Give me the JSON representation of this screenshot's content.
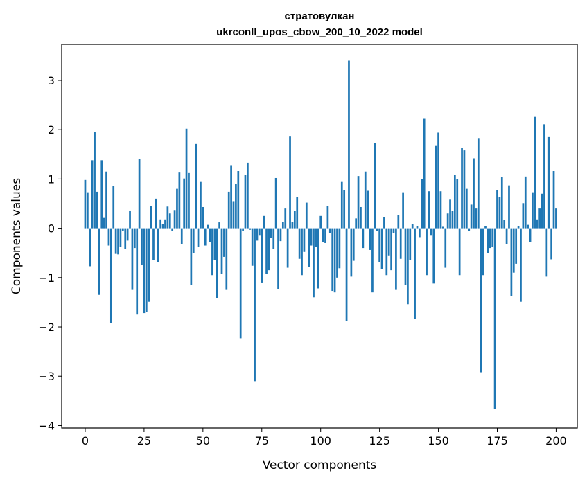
{
  "chart_data": {
    "type": "bar",
    "title": "стратовулкан",
    "subtitle": "ukrconll_upos_cbow_200_10_2022 model",
    "xlabel": "Vector components",
    "ylabel": "Components values",
    "xlim": [
      -10,
      209
    ],
    "ylim": [
      -4.05,
      3.73
    ],
    "xticks": [
      0,
      25,
      50,
      75,
      100,
      125,
      150,
      175,
      200
    ],
    "yticks": [
      -4,
      -3,
      -2,
      -1,
      0,
      1,
      2,
      3
    ],
    "grid": false,
    "bar_color": "#1f77b4",
    "values": [
      0.98,
      0.73,
      -0.77,
      1.38,
      1.96,
      0.74,
      -1.35,
      1.38,
      0.21,
      1.15,
      -0.35,
      -1.92,
      0.86,
      -0.52,
      -0.53,
      -0.38,
      -0.05,
      -0.42,
      -0.25,
      0.36,
      -1.25,
      -0.4,
      -1.75,
      1.4,
      -0.75,
      -1.72,
      -1.7,
      -1.49,
      0.45,
      -0.65,
      0.6,
      -0.68,
      0.18,
      0.08,
      0.18,
      0.44,
      0.3,
      -0.05,
      0.37,
      0.8,
      1.13,
      -0.32,
      1.01,
      2.02,
      1.12,
      -1.15,
      -0.5,
      1.71,
      -0.38,
      0.94,
      0.43,
      -0.35,
      0.07,
      -0.28,
      -0.95,
      -0.65,
      -1.42,
      0.12,
      -0.92,
      -0.58,
      -1.25,
      0.74,
      1.28,
      0.55,
      0.9,
      1.16,
      -2.23,
      -0.05,
      1.08,
      1.33,
      -0.03,
      -0.76,
      -3.1,
      -0.25,
      -0.15,
      -1.1,
      0.25,
      -0.92,
      -0.85,
      -0.2,
      -0.42,
      1.02,
      -1.23,
      -0.26,
      0.13,
      0.4,
      -0.8,
      1.86,
      0.13,
      0.35,
      0.63,
      -0.62,
      -0.95,
      -0.48,
      0.52,
      -0.78,
      -0.35,
      -1.4,
      -0.38,
      -1.22,
      0.25,
      -0.28,
      -0.3,
      0.45,
      -0.1,
      -1.27,
      -1.3,
      -1.0,
      -0.81,
      0.94,
      0.78,
      -1.88,
      3.4,
      -0.98,
      -0.66,
      0.2,
      1.06,
      0.43,
      -0.4,
      1.15,
      0.76,
      -0.44,
      -1.3,
      1.73,
      -0.05,
      -0.68,
      -0.82,
      0.22,
      -0.95,
      -0.55,
      -0.85,
      -0.1,
      -1.25,
      0.27,
      -0.62,
      0.73,
      -1.15,
      -1.54,
      -0.65,
      0.08,
      -1.84,
      0.04,
      -0.18,
      1.0,
      2.22,
      -0.95,
      0.75,
      -0.15,
      -1.12,
      1.67,
      1.94,
      0.75,
      0.03,
      -0.8,
      0.3,
      0.58,
      0.35,
      1.08,
      1.0,
      -0.95,
      1.63,
      1.58,
      0.8,
      -0.06,
      0.48,
      1.42,
      0.4,
      1.83,
      -2.92,
      -0.95,
      0.05,
      -0.5,
      -0.4,
      -0.38,
      -3.67,
      0.78,
      0.63,
      1.04,
      0.17,
      -0.32,
      0.87,
      -1.38,
      -0.9,
      -0.72,
      0.05,
      -1.49,
      0.51,
      1.05,
      0.07,
      -0.28,
      0.73,
      2.26,
      0.18,
      0.4,
      0.7,
      2.11,
      -0.98,
      1.85,
      -0.63,
      1.16,
      0.4
    ]
  }
}
